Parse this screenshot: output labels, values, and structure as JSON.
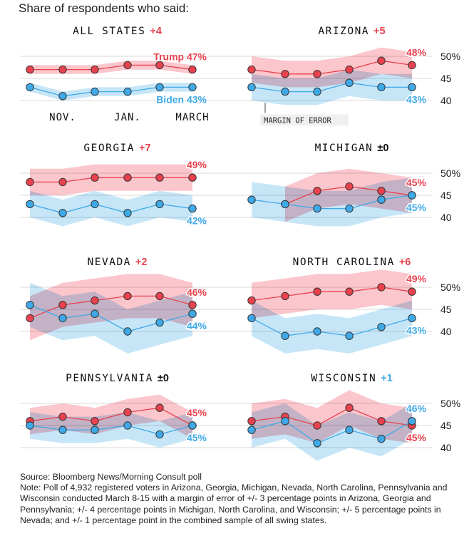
{
  "subtitle": "Share of respondents who said:",
  "colors": {
    "trump": "#e8424f",
    "trump_band": "#f9a8b0",
    "biden": "#3fa9e8",
    "biden_band": "#a8d8f5",
    "grid": "#d8d8d8"
  },
  "chart_data": [
    {
      "type": "line",
      "title": "ALL STATES",
      "change": "+4",
      "change_party": "trump",
      "margin_of_error": 1,
      "ylim": [
        38,
        52
      ],
      "yticks": [
        40,
        45,
        50
      ],
      "show_yticks": false,
      "x_labels": [
        "NOV.",
        "JAN.",
        "MARCH"
      ],
      "series": [
        {
          "name": "Trump",
          "values": [
            47,
            47,
            47,
            48,
            48,
            47
          ],
          "end_label": "Trump 47%"
        },
        {
          "name": "Biden",
          "values": [
            43,
            41,
            42,
            42,
            43,
            43
          ],
          "end_label": "Biden 43%"
        }
      ]
    },
    {
      "type": "line",
      "title": "ARIZONA",
      "change": "+5",
      "change_party": "trump",
      "margin_of_error": 3,
      "ylim": [
        38,
        52
      ],
      "yticks": [
        40,
        45,
        50
      ],
      "ytick_labels": [
        "40",
        "45",
        "50%"
      ],
      "show_yticks": true,
      "annotation": "MARGIN OF ERROR",
      "series": [
        {
          "name": "Trump",
          "values": [
            47,
            46,
            46,
            47,
            49,
            48
          ],
          "end_label": "48%"
        },
        {
          "name": "Biden",
          "values": [
            43,
            42,
            42,
            44,
            43,
            43
          ],
          "end_label": "43%"
        }
      ]
    },
    {
      "type": "line",
      "title": "GEORGIA",
      "change": "+7",
      "change_party": "trump",
      "margin_of_error": 3,
      "ylim": [
        38,
        52
      ],
      "yticks": [
        40,
        45,
        50
      ],
      "show_yticks": false,
      "series": [
        {
          "name": "Trump",
          "values": [
            48,
            48,
            49,
            49,
            49,
            49
          ],
          "end_label": "49%"
        },
        {
          "name": "Biden",
          "values": [
            43,
            41,
            43,
            41,
            43,
            42
          ],
          "end_label": "42%"
        }
      ]
    },
    {
      "type": "line",
      "title": "MICHIGAN",
      "change": "±0",
      "change_party": "tie",
      "margin_of_error": 4,
      "ylim": [
        38,
        52
      ],
      "yticks": [
        40,
        45,
        50
      ],
      "ytick_labels": [
        "40",
        "45",
        "50%"
      ],
      "show_yticks": true,
      "series": [
        {
          "name": "Trump",
          "values": [
            null,
            43,
            46,
            47,
            46,
            45
          ],
          "end_label": "45%"
        },
        {
          "name": "Biden",
          "values": [
            44,
            43,
            42,
            42,
            44,
            45
          ],
          "end_label": "45%"
        }
      ]
    },
    {
      "type": "line",
      "title": "NEVADA",
      "change": "+2",
      "change_party": "trump",
      "margin_of_error": 5,
      "ylim": [
        38,
        52
      ],
      "yticks": [
        40,
        45,
        50
      ],
      "show_yticks": false,
      "series": [
        {
          "name": "Trump",
          "values": [
            43,
            46,
            47,
            48,
            48,
            46
          ],
          "end_label": "46%"
        },
        {
          "name": "Biden",
          "values": [
            46,
            43,
            44,
            40,
            42,
            44
          ],
          "end_label": "44%"
        }
      ]
    },
    {
      "type": "line",
      "title": "NORTH CAROLINA",
      "change": "+6",
      "change_party": "trump",
      "margin_of_error": 4,
      "ylim": [
        38,
        52
      ],
      "yticks": [
        40,
        45,
        50
      ],
      "ytick_labels": [
        "40",
        "45",
        "50%"
      ],
      "show_yticks": true,
      "series": [
        {
          "name": "Trump",
          "values": [
            47,
            48,
            49,
            49,
            50,
            49
          ],
          "end_label": "49%"
        },
        {
          "name": "Biden",
          "values": [
            43,
            39,
            40,
            39,
            41,
            43
          ],
          "end_label": "43%"
        }
      ]
    },
    {
      "type": "line",
      "title": "PENNSYLVANIA",
      "change": "±0",
      "change_party": "tie",
      "margin_of_error": 3,
      "ylim": [
        38,
        52
      ],
      "yticks": [
        40,
        45,
        50
      ],
      "show_yticks": false,
      "series": [
        {
          "name": "Trump",
          "values": [
            46,
            47,
            46,
            48,
            49,
            45
          ],
          "end_label": "45%"
        },
        {
          "name": "Biden",
          "values": [
            45,
            44,
            44,
            45,
            43,
            45
          ],
          "end_label": "45%"
        }
      ]
    },
    {
      "type": "line",
      "title": "WISCONSIN",
      "change": "+1",
      "change_party": "biden",
      "margin_of_error": 4,
      "ylim": [
        38,
        52
      ],
      "yticks": [
        40,
        45,
        50
      ],
      "ytick_labels": [
        "40",
        "45",
        "50%"
      ],
      "show_yticks": true,
      "series": [
        {
          "name": "Trump",
          "values": [
            46,
            47,
            45,
            49,
            46,
            45
          ],
          "end_label": "45%"
        },
        {
          "name": "Biden",
          "values": [
            44,
            46,
            41,
            44,
            42,
            46
          ],
          "end_label": "46%"
        }
      ]
    }
  ],
  "footer": {
    "source": "Source: Bloomberg News/Morning Consult poll",
    "note": "Note: Poll of 4,932 registered voters in Arizona, Georgia, Michigan, Nevada, North Carolina, Pennsylvania and Wisconsin conducted March 8-15 with a margin of error of +/- 3 percentage points in Arizona, Georgia and Pennsylvania; +/- 4 percentage points in Michigan, North Carolina, and Wisconsin; +/- 5 percentage points in Nevada; and +/- 1 percentage point in the combined sample of all swing states."
  }
}
